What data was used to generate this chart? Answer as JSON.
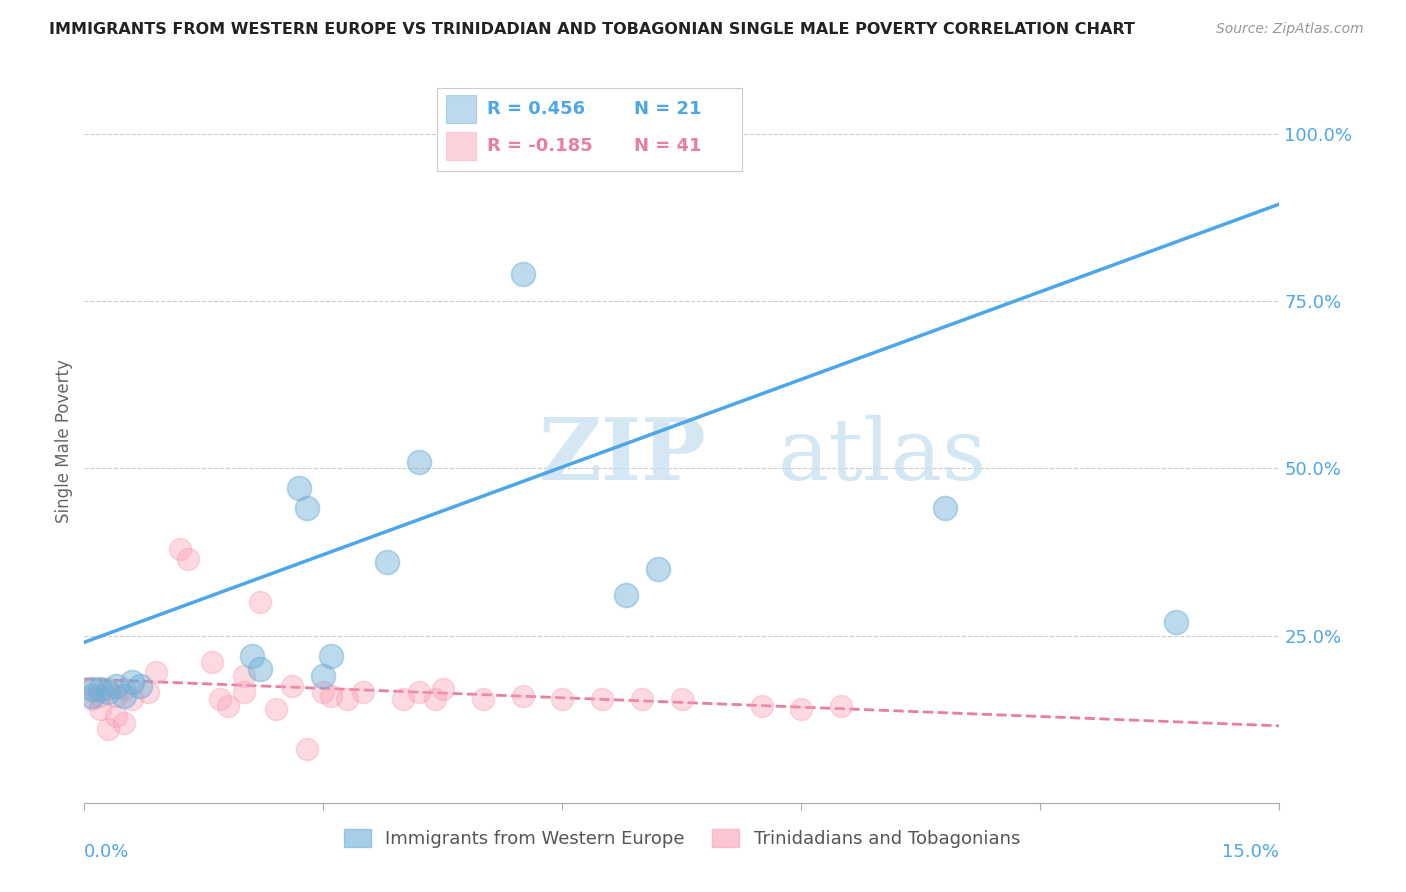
{
  "title": "IMMIGRANTS FROM WESTERN EUROPE VS TRINIDADIAN AND TOBAGONIAN SINGLE MALE POVERTY CORRELATION CHART",
  "source": "Source: ZipAtlas.com",
  "ylabel": "Single Male Poverty",
  "legend_blue_r": "R = 0.456",
  "legend_blue_n": "N = 21",
  "legend_pink_r": "R = -0.185",
  "legend_pink_n": "N = 41",
  "legend_label_blue": "Immigrants from Western Europe",
  "legend_label_pink": "Trinidadians and Tobagonians",
  "watermark": "ZIPatlas",
  "blue_color": "#6baed6",
  "pink_color": "#fa9fb5",
  "blue_line_color": "#4da6e8",
  "pink_line_color": "#e87ea0",
  "blue_scatter_x": [
    0.001,
    0.001,
    0.002,
    0.003,
    0.004,
    0.005,
    0.006,
    0.007,
    0.021,
    0.022,
    0.027,
    0.028,
    0.03,
    0.031,
    0.038,
    0.042,
    0.055,
    0.068,
    0.072,
    0.108,
    0.137
  ],
  "blue_scatter_y": [
    0.16,
    0.17,
    0.17,
    0.165,
    0.175,
    0.16,
    0.18,
    0.175,
    0.22,
    0.2,
    0.47,
    0.44,
    0.19,
    0.22,
    0.36,
    0.51,
    0.79,
    0.31,
    0.35,
    0.44,
    0.27
  ],
  "pink_scatter_x": [
    0.001,
    0.001,
    0.002,
    0.002,
    0.003,
    0.003,
    0.004,
    0.004,
    0.005,
    0.005,
    0.006,
    0.008,
    0.009,
    0.012,
    0.013,
    0.016,
    0.017,
    0.018,
    0.02,
    0.02,
    0.022,
    0.024,
    0.026,
    0.028,
    0.03,
    0.031,
    0.033,
    0.035,
    0.04,
    0.042,
    0.044,
    0.045,
    0.05,
    0.055,
    0.06,
    0.065,
    0.07,
    0.075,
    0.085,
    0.09,
    0.095
  ],
  "pink_scatter_y": [
    0.17,
    0.155,
    0.16,
    0.14,
    0.17,
    0.11,
    0.16,
    0.13,
    0.17,
    0.12,
    0.155,
    0.165,
    0.195,
    0.38,
    0.365,
    0.21,
    0.155,
    0.145,
    0.19,
    0.165,
    0.3,
    0.14,
    0.175,
    0.08,
    0.165,
    0.16,
    0.155,
    0.165,
    0.155,
    0.165,
    0.155,
    0.17,
    0.155,
    0.16,
    0.155,
    0.155,
    0.155,
    0.155,
    0.145,
    0.14,
    0.145
  ],
  "blue_line_x0": 0.0,
  "blue_line_x1": 0.15,
  "blue_line_y0": 0.24,
  "blue_line_y1": 0.895,
  "pink_line_x0": 0.0,
  "pink_line_x1": 0.15,
  "pink_line_y0": 0.185,
  "pink_line_y1": 0.115,
  "xmin": 0.0,
  "xmax": 0.15,
  "ymin": 0.0,
  "ymax": 1.08,
  "ytick_values": [
    0.25,
    0.5,
    0.75,
    1.0
  ],
  "ytick_labels": [
    "25.0%",
    "50.0%",
    "75.0%",
    "100.0%"
  ],
  "xlabel_left_label": "0.0%",
  "xlabel_right_label": "15.0%"
}
